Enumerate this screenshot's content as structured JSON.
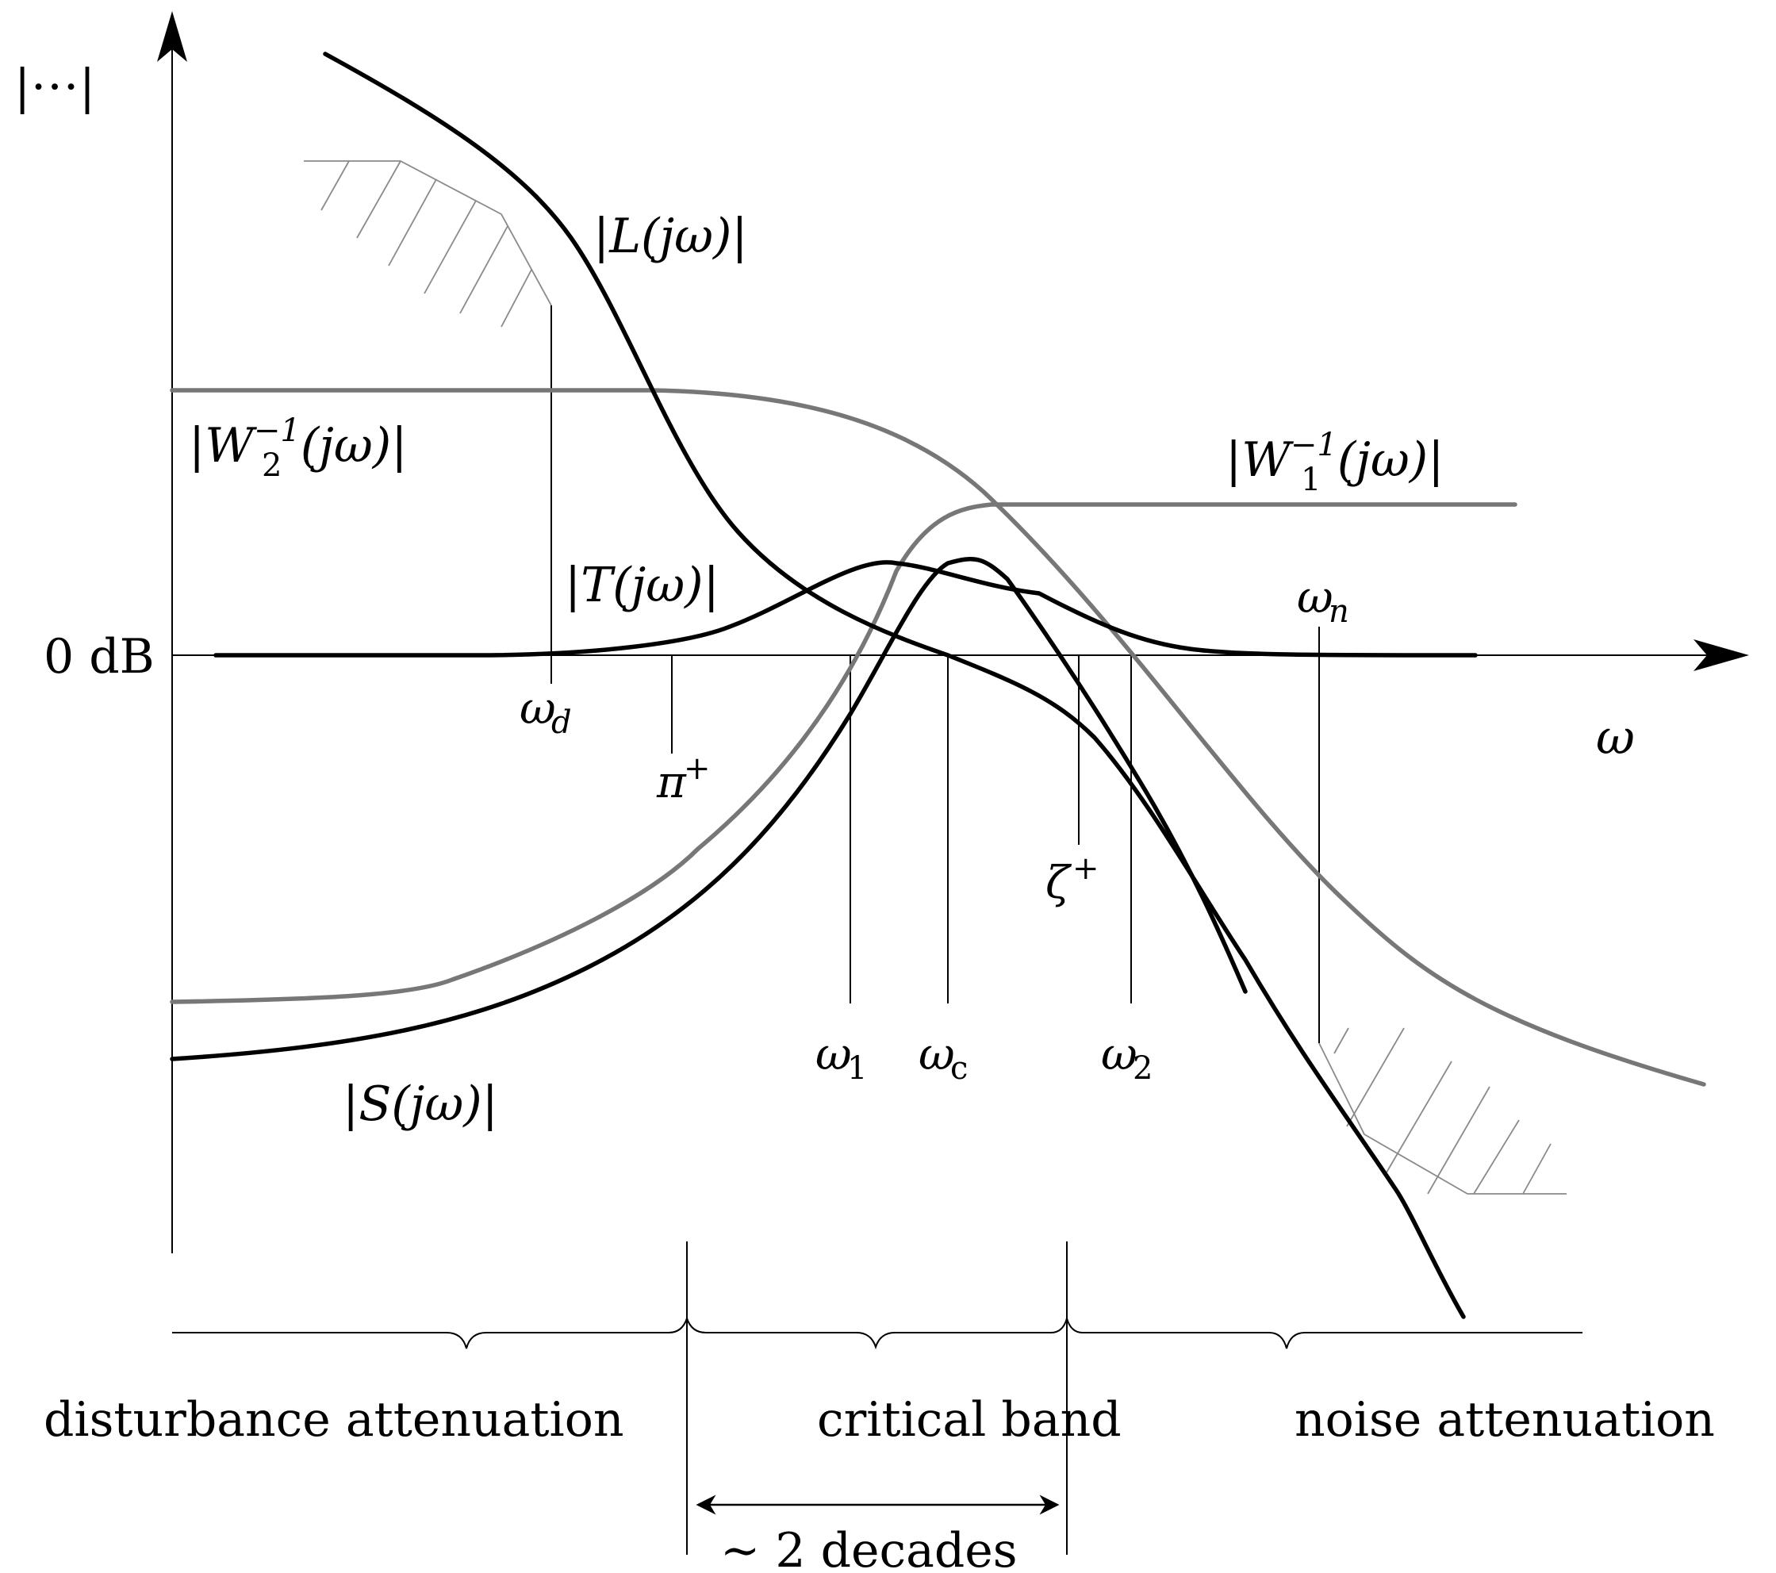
{
  "axes": {
    "y_label": "|⋅⋅⋅|",
    "x_label": "ω",
    "zero_db": "0 dB"
  },
  "curves": {
    "L": "|L(jω)|",
    "T": "|T(jω)|",
    "S": "|S(jω)|",
    "W2": {
      "pre": "|W",
      "sub": "2",
      "sup": "−1",
      "post": "(jω)|"
    },
    "W1": {
      "pre": "|W",
      "sub": "1",
      "sup": "−1",
      "post": "(jω)|"
    }
  },
  "markers": {
    "omega_d": {
      "base": "ω",
      "sub": "d"
    },
    "pi_plus": {
      "base": "π",
      "sup": "+"
    },
    "omega_1": {
      "base": "ω",
      "sub": "1"
    },
    "omega_c": {
      "base": "ω",
      "sub": "c"
    },
    "zeta_plus": {
      "base": "ζ",
      "sup": "+"
    },
    "omega_2": {
      "base": "ω",
      "sub": "2"
    },
    "omega_n": {
      "base": "ω",
      "sub": "n"
    }
  },
  "bands": {
    "disturbance": "disturbance attenuation",
    "critical": "critical band",
    "noise": "noise attenuation",
    "span": "∼ 2 decades"
  },
  "colors": {
    "primary_curve": "#000000",
    "bound_curve": "#777777",
    "hatch": "#8a8a8a"
  }
}
